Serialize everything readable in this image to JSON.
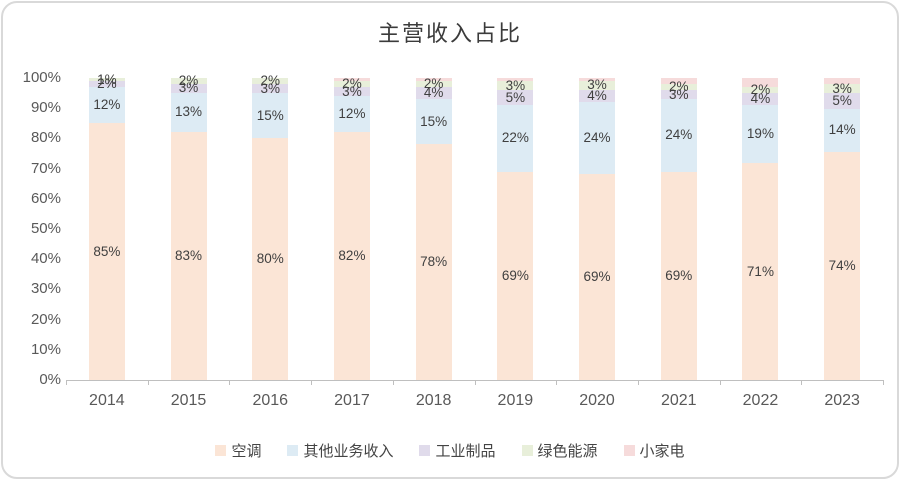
{
  "window": {
    "title": "主营收入占比"
  },
  "chart_data": {
    "type": "bar",
    "stacked": true,
    "title": "主营收入占比",
    "categories": [
      "2014",
      "2015",
      "2016",
      "2017",
      "2018",
      "2019",
      "2020",
      "2021",
      "2022",
      "2023"
    ],
    "series": [
      {
        "name": "空调",
        "color": "#FBE5D6",
        "values": [
          85,
          83,
          80,
          82,
          78,
          69,
          69,
          69,
          71,
          74
        ],
        "labels": [
          "85%",
          "83%",
          "80%",
          "82%",
          "78%",
          "69%",
          "69%",
          "69%",
          "71%",
          "74%"
        ]
      },
      {
        "name": "其他业务收入",
        "color": "#DDEBF4",
        "values": [
          12,
          13,
          15,
          12,
          15,
          22,
          24,
          24,
          19,
          14
        ],
        "labels": [
          "12%",
          "13%",
          "15%",
          "12%",
          "15%",
          "22%",
          "24%",
          "24%",
          "19%",
          "14%"
        ]
      },
      {
        "name": "工业制品",
        "color": "#E0DBEB",
        "values": [
          2,
          3,
          3,
          3,
          4,
          5,
          4,
          3,
          4,
          5
        ],
        "labels": [
          "2%",
          "3%",
          "3%",
          "3%",
          "4%",
          "5%",
          "4%",
          "3%",
          "4%",
          "5%"
        ]
      },
      {
        "name": "绿色能源",
        "color": "#E8EFDA",
        "values": [
          1,
          2,
          2,
          2,
          2,
          3,
          3,
          2,
          2,
          3
        ],
        "labels": [
          "1%",
          "2%",
          "2%",
          "2%",
          "2%",
          "3%",
          "3%",
          "2%",
          "2%",
          "3%"
        ]
      },
      {
        "name": "小家电",
        "color": "#F6DBDB",
        "values": [
          0,
          0,
          0,
          1,
          1,
          1,
          1,
          2,
          3,
          2
        ],
        "labels": [
          "",
          "",
          "",
          "",
          "",
          "",
          "",
          "",
          "",
          ""
        ]
      }
    ],
    "y_ticks": [
      "0%",
      "10%",
      "20%",
      "30%",
      "40%",
      "50%",
      "60%",
      "70%",
      "80%",
      "90%",
      "100%"
    ],
    "ylim": [
      0,
      100
    ],
    "grid": false,
    "legend_position": "bottom",
    "legend": [
      "空调",
      "其他业务收入",
      "工业制品",
      "绿色能源",
      "小家电"
    ]
  },
  "colors": {
    "axis": "#BFBFBF",
    "tick_text": "#595959",
    "data_label_text": "#3F3F3F",
    "card_border": "#D9D9D9",
    "background": "#FFFFFF"
  }
}
